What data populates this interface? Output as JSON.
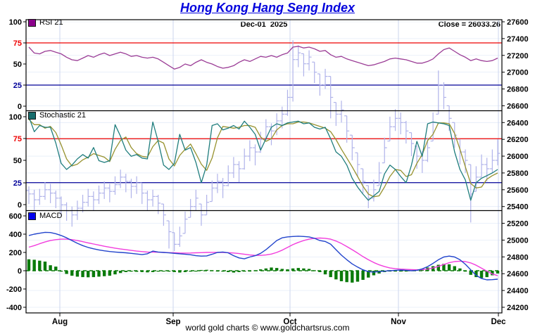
{
  "header": {
    "title": "Hong Kong Hang Seng Index",
    "date_label": "Dec-01  2025",
    "close_label": "Close = 26033.26"
  },
  "footer": {
    "credit": "world gold charts © www.goldchartsrus.com"
  },
  "panels": {
    "rsi": {
      "legend": "RSI 21",
      "axis_labels": [
        "100",
        "75",
        "50",
        "25",
        "0"
      ],
      "overbought": 75,
      "oversold": 25
    },
    "stoch": {
      "legend": "Stochastic 21",
      "axis_labels": [
        "100",
        "75",
        "50",
        "25",
        "0"
      ],
      "overbought": 75,
      "oversold": 25
    },
    "macd": {
      "legend": "MACD",
      "axis_labels": [
        "600",
        "400",
        "200",
        "0",
        "-200",
        "-400"
      ]
    }
  },
  "axes": {
    "right_labels": [
      "27600",
      "27400",
      "27200",
      "27000",
      "26800",
      "26600",
      "26400",
      "26200",
      "26000",
      "25800",
      "25600",
      "25400",
      "25200",
      "25000",
      "24800",
      "24600",
      "24400",
      "24200"
    ],
    "months": [
      "Aug",
      "Sep",
      "Oct",
      "Nov",
      "Dec"
    ]
  },
  "colors": {
    "title": "#0404dd",
    "rsi_line": "#9b3d96",
    "stoch_k": "#1f7d7d",
    "stoch_d": "#97922e",
    "macd_line": "#2244cc",
    "macd_signal": "#f23ddd",
    "histogram": "#0a7a0a",
    "price_bars": "#b0b3ea",
    "overbought_line": "#ee0000",
    "oversold_line": "#000099",
    "rsi_swatch": "#8b008b",
    "stoch_swatch": "#176d6d",
    "macd_swatch": "#0000ee",
    "grid_h": "#e4ecf8",
    "grid_v": "#ccd6ee"
  },
  "chart_data": {
    "type": "mixed-financial",
    "instrument": "Hong Kong Hang Seng Index",
    "last_close": 26033.26,
    "date_of_close": "Dec-01 2025",
    "x_months": [
      "Aug",
      "Sep",
      "Oct",
      "Nov",
      "Dec"
    ],
    "price_axis": {
      "min": 24200,
      "max": 27600,
      "step": 200
    },
    "indicator_axis": {
      "rsi": [
        0,
        100
      ],
      "stoch": [
        0,
        100
      ],
      "macd": [
        -400,
        600
      ]
    },
    "price_bars": [
      [
        25640,
        25430,
        25550
      ],
      [
        25600,
        25360,
        25480
      ],
      [
        25610,
        25420,
        25520
      ],
      [
        25690,
        25480,
        25600
      ],
      [
        25670,
        25440,
        25560
      ],
      [
        25590,
        25380,
        25500
      ],
      [
        25520,
        25290,
        25420
      ],
      [
        25450,
        25230,
        25350
      ],
      [
        25400,
        25160,
        25300
      ],
      [
        25470,
        25240,
        25380
      ],
      [
        25540,
        25330,
        25450
      ],
      [
        25610,
        25400,
        25520
      ],
      [
        25580,
        25350,
        25480
      ],
      [
        25650,
        25430,
        25560
      ],
      [
        25700,
        25490,
        25620
      ],
      [
        25670,
        25450,
        25580
      ],
      [
        25760,
        25540,
        25660
      ],
      [
        25840,
        25620,
        25750
      ],
      [
        25790,
        25570,
        25700
      ],
      [
        25730,
        25500,
        25640
      ],
      [
        25760,
        25550,
        25680
      ],
      [
        25680,
        25430,
        25560
      ],
      [
        25590,
        25350,
        25480
      ],
      [
        25600,
        25400,
        25520
      ],
      [
        25540,
        25310,
        25440
      ],
      [
        25430,
        25170,
        25300
      ],
      [
        25230,
        24900,
        25100
      ],
      [
        25090,
        24870,
        24950
      ],
      [
        25160,
        24920,
        25050
      ],
      [
        25340,
        25080,
        25250
      ],
      [
        25490,
        25270,
        25400
      ],
      [
        25600,
        25350,
        25500
      ],
      [
        25430,
        25170,
        25300
      ],
      [
        25540,
        25300,
        25450
      ],
      [
        25710,
        25460,
        25620
      ],
      [
        25790,
        25560,
        25700
      ],
      [
        25740,
        25500,
        25650
      ],
      [
        25890,
        25640,
        25800
      ],
      [
        25990,
        25740,
        25900
      ],
      [
        25940,
        25690,
        25850
      ],
      [
        26090,
        25840,
        26000
      ],
      [
        26190,
        25940,
        26100
      ],
      [
        26140,
        25890,
        26050
      ],
      [
        26290,
        26040,
        26200
      ],
      [
        26440,
        26190,
        26350
      ],
      [
        26390,
        26130,
        26300
      ],
      [
        26510,
        26250,
        26420
      ],
      [
        26590,
        26330,
        26500
      ],
      [
        26790,
        26480,
        26700
      ],
      [
        27380,
        26650,
        27150
      ],
      [
        27320,
        27060,
        27230
      ],
      [
        27220,
        26950,
        27100
      ],
      [
        27260,
        27020,
        27180
      ],
      [
        27120,
        26870,
        27000
      ],
      [
        26980,
        26720,
        26850
      ],
      [
        27040,
        26800,
        26950
      ],
      [
        26950,
        26450,
        26700
      ],
      [
        26640,
        26360,
        26500
      ],
      [
        26660,
        26400,
        26550
      ],
      [
        26480,
        26160,
        26300
      ],
      [
        26250,
        25950,
        26100
      ],
      [
        26040,
        25760,
        25900
      ],
      [
        25850,
        25560,
        25700
      ],
      [
        25650,
        25380,
        25500
      ],
      [
        25720,
        25460,
        25600
      ],
      [
        25930,
        25650,
        25800
      ],
      [
        26220,
        25920,
        26100
      ],
      [
        26470,
        26180,
        26350
      ],
      [
        26560,
        26300,
        26450
      ],
      [
        26520,
        26260,
        26400
      ],
      [
        26420,
        26150,
        26300
      ],
      [
        26280,
        26000,
        26150
      ],
      [
        26120,
        25850,
        26000
      ],
      [
        26060,
        25800,
        25950
      ],
      [
        26220,
        25930,
        26100
      ],
      [
        26520,
        26180,
        26400
      ],
      [
        27020,
        26500,
        26850
      ],
      [
        26880,
        26560,
        26700
      ],
      [
        26600,
        26300,
        26450
      ],
      [
        26400,
        26100,
        26250
      ],
      [
        26200,
        25900,
        26050
      ],
      [
        26080,
        25800,
        25950
      ],
      [
        25900,
        25210,
        25550
      ],
      [
        25880,
        25580,
        25750
      ],
      [
        26020,
        25750,
        25900
      ],
      [
        25980,
        25700,
        25850
      ],
      [
        26080,
        25800,
        25950
      ],
      [
        26200,
        25890,
        26033
      ]
    ],
    "rsi_21": [
      70,
      63,
      62,
      65,
      66,
      64,
      62,
      58,
      55,
      54,
      57,
      60,
      58,
      61,
      63,
      60,
      62,
      64,
      62,
      59,
      60,
      58,
      57,
      58,
      56,
      52,
      48,
      44,
      46,
      50,
      48,
      52,
      55,
      52,
      50,
      47,
      45,
      46,
      48,
      52,
      55,
      53,
      56,
      59,
      58,
      60,
      58,
      61,
      63,
      70,
      71,
      69,
      70,
      68,
      65,
      66,
      61,
      58,
      59,
      56,
      54,
      52,
      50,
      48,
      49,
      51,
      53,
      56,
      57,
      56,
      55,
      53,
      51,
      51,
      53,
      56,
      62,
      67,
      69,
      65,
      61,
      58,
      54,
      56,
      54,
      53,
      54,
      57
    ],
    "stoch_k": [
      100,
      83,
      90,
      88,
      88,
      70,
      47,
      40,
      45,
      52,
      57,
      53,
      65,
      50,
      48,
      50,
      91,
      78,
      62,
      55,
      57,
      53,
      52,
      94,
      72,
      45,
      40,
      47,
      80,
      62,
      65,
      48,
      25,
      45,
      90,
      92,
      85,
      87,
      90,
      86,
      95,
      88,
      80,
      62,
      75,
      88,
      92,
      90,
      93,
      94,
      95,
      92,
      93,
      88,
      86,
      88,
      75,
      60,
      55,
      45,
      30,
      20,
      12,
      5,
      10,
      15,
      35,
      45,
      40,
      32,
      25,
      45,
      72,
      55,
      92,
      94,
      93,
      92,
      90,
      60,
      40,
      28,
      5,
      25,
      30,
      33,
      36,
      40
    ],
    "stoch_d": [
      97,
      91,
      91,
      87,
      89,
      82,
      68,
      52,
      44,
      46,
      51,
      54,
      58,
      56,
      54,
      49,
      63,
      73,
      77,
      65,
      58,
      55,
      54,
      66,
      73,
      70,
      52,
      44,
      56,
      63,
      69,
      58,
      46,
      39,
      53,
      76,
      89,
      88,
      87,
      88,
      90,
      90,
      88,
      77,
      72,
      75,
      85,
      90,
      92,
      92,
      94,
      94,
      93,
      91,
      89,
      87,
      83,
      74,
      63,
      53,
      43,
      32,
      21,
      12,
      9,
      10,
      20,
      32,
      40,
      39,
      32,
      34,
      47,
      57,
      73,
      80,
      93,
      93,
      92,
      81,
      63,
      43,
      24,
      19,
      20,
      29,
      33,
      36
    ],
    "macd_line": [
      385,
      400,
      410,
      420,
      418,
      405,
      385,
      360,
      330,
      300,
      275,
      255,
      240,
      228,
      218,
      210,
      205,
      200,
      196,
      190,
      183,
      176,
      185,
      215,
      205,
      200,
      195,
      190,
      185,
      180,
      175,
      165,
      160,
      162,
      180,
      200,
      205,
      195,
      165,
      140,
      130,
      150,
      165,
      190,
      230,
      280,
      330,
      360,
      370,
      375,
      378,
      375,
      370,
      355,
      330,
      320,
      290,
      230,
      170,
      120,
      75,
      40,
      10,
      -10,
      -15,
      -10,
      -5,
      0,
      5,
      8,
      5,
      0,
      5,
      20,
      45,
      80,
      120,
      150,
      160,
      150,
      120,
      70,
      10,
      -50,
      -85,
      -100,
      -98,
      -92
    ],
    "macd_signal": [
      258,
      275,
      295,
      315,
      330,
      340,
      345,
      345,
      340,
      330,
      318,
      305,
      292,
      280,
      268,
      257,
      247,
      238,
      230,
      222,
      215,
      209,
      204,
      203,
      202,
      200,
      198,
      196,
      194,
      193,
      194,
      196,
      198,
      200,
      201,
      201,
      200,
      198,
      194,
      188,
      180,
      172,
      168,
      168,
      172,
      182,
      200,
      225,
      255,
      285,
      310,
      330,
      345,
      355,
      358,
      355,
      345,
      325,
      298,
      265,
      230,
      193,
      155,
      120,
      90,
      65,
      45,
      30,
      22,
      18,
      15,
      12,
      10,
      12,
      18,
      30,
      48,
      68,
      88,
      100,
      105,
      100,
      85,
      60,
      28,
      -5,
      -35,
      -55
    ],
    "macd_histogram": [
      125,
      120,
      110,
      100,
      60,
      45,
      -10,
      -35,
      -55,
      -65,
      -70,
      -72,
      -70,
      -65,
      -60,
      -55,
      -40,
      -25,
      -15,
      -10,
      -12,
      -15,
      -18,
      -15,
      -10,
      -8,
      -10,
      -15,
      -20,
      -15,
      -10,
      -5,
      8,
      10,
      5,
      -5,
      -10,
      -15,
      -20,
      -15,
      -10,
      -5,
      5,
      15,
      25,
      35,
      30,
      20,
      15,
      25,
      30,
      25,
      20,
      5,
      -15,
      -40,
      -70,
      -95,
      -115,
      -125,
      -130,
      -120,
      -100,
      -75,
      -50,
      -30,
      -15,
      -8,
      -5,
      -3,
      0,
      5,
      10,
      20,
      35,
      50,
      65,
      75,
      70,
      50,
      25,
      -10,
      -45,
      -70,
      -80,
      -70,
      -50,
      -30
    ]
  }
}
